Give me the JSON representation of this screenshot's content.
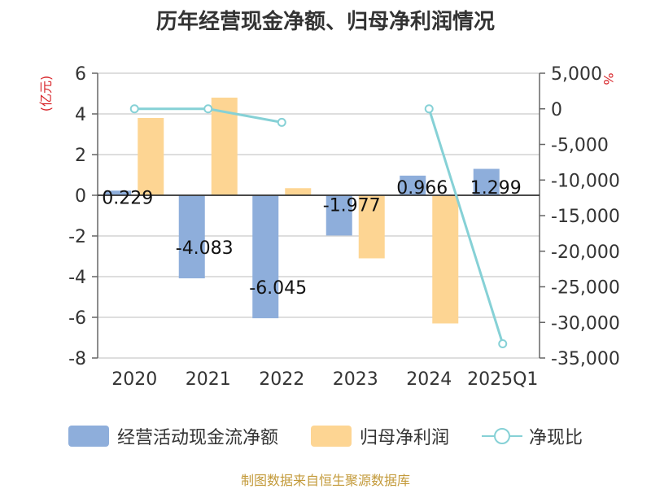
{
  "chart_data": {
    "type": "bar",
    "title": "历年经营现金净额、归母净利润情况",
    "categories": [
      "2020",
      "2021",
      "2022",
      "2023",
      "2024",
      "2025Q1"
    ],
    "left_axis": {
      "label": "(亿元)",
      "min": -8,
      "max": 6,
      "ticks": [
        6,
        4,
        2,
        0,
        -2,
        -4,
        -6,
        -8
      ]
    },
    "right_axis": {
      "label": "%",
      "min": -35000,
      "max": 5000,
      "ticks": [
        5000,
        0,
        -5000,
        -10000,
        -15000,
        -20000,
        -25000,
        -30000,
        -35000
      ]
    },
    "series": [
      {
        "name": "经营活动现金流净额",
        "type": "bar",
        "axis": "left",
        "color": "#8eaedb",
        "values": [
          0.229,
          -4.083,
          -6.045,
          -1.977,
          0.966,
          1.299
        ],
        "labels": [
          "0.229",
          "-4.083",
          "-6.045",
          "-1.977",
          "0.966",
          "1.299"
        ]
      },
      {
        "name": "归母净利润",
        "type": "bar",
        "axis": "left",
        "color": "#fdd593",
        "values": [
          3.8,
          4.8,
          0.35,
          -3.1,
          -6.3,
          null
        ]
      },
      {
        "name": "净现比",
        "type": "line",
        "axis": "right",
        "color": "#86d1d6",
        "values": [
          0,
          0,
          -1900,
          null,
          0,
          -33000
        ]
      }
    ]
  },
  "legend": {
    "items": [
      "经营活动现金流净额",
      "归母净利润",
      "净现比"
    ]
  },
  "source_note": "制图数据来自恒生聚源数据库"
}
